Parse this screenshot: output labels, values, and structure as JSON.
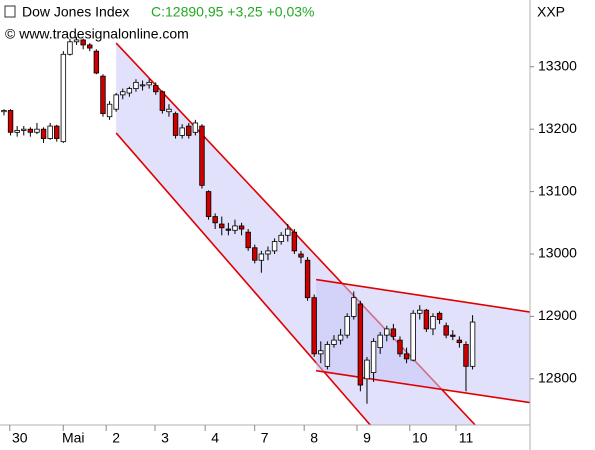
{
  "chart_data": {
    "type": "candlestick",
    "title": "Dow Jones Index",
    "quote": "C:12890,95 +3,25 +0,03%",
    "source": "© www.tradesignalonline.com",
    "symbol": "XXP",
    "up_color": "#ffffff",
    "down_color": "#cc0000",
    "channel_color": "#e00000",
    "channel_fill": "#c8c8f8",
    "x": [
      0,
      1,
      2,
      3,
      4,
      5,
      6,
      7,
      8,
      9,
      10,
      11,
      12,
      13,
      14,
      15,
      16,
      17,
      18,
      19,
      20,
      21,
      22,
      23,
      24,
      25,
      26,
      27,
      28,
      29,
      30,
      31,
      32,
      33,
      34,
      35,
      36,
      37,
      38,
      39,
      40,
      41,
      42,
      43,
      44,
      45,
      46,
      47,
      48,
      49,
      50,
      51,
      52,
      53,
      54,
      55,
      56,
      57,
      58,
      59,
      60,
      61,
      62,
      63,
      64,
      65,
      66,
      67,
      68,
      69,
      70,
      71
    ],
    "open": [
      13228,
      13230,
      13195,
      13198,
      13200,
      13195,
      13200,
      13185,
      13205,
      13180,
      13320,
      13340,
      13343,
      13335,
      13325,
      13285,
      13220,
      13232,
      13255,
      13258,
      13265,
      13270,
      13271,
      13270,
      13260,
      13228,
      13225,
      13190,
      13205,
      13195,
      13205,
      13100,
      13060,
      13048,
      13040,
      13038,
      13045,
      13035,
      13010,
      12990,
      13000,
      13005,
      13020,
      13030,
      13035,
      13000,
      12990,
      12930,
      12840,
      12820,
      12855,
      12862,
      12870,
      12900,
      12920,
      12800,
      12810,
      12850,
      12870,
      12880,
      12862,
      12840,
      12830,
      12905,
      12910,
      12880,
      12905,
      12885,
      12870,
      12862,
      12855,
      12820
    ],
    "high": [
      13232,
      13232,
      13205,
      13205,
      13203,
      13210,
      13203,
      13210,
      13207,
      13325,
      13345,
      13348,
      13345,
      13338,
      13328,
      13288,
      13245,
      13258,
      13265,
      13268,
      13280,
      13278,
      13280,
      13275,
      13262,
      13240,
      13228,
      13208,
      13210,
      13215,
      13208,
      13102,
      13065,
      13060,
      13050,
      13055,
      13050,
      13040,
      13015,
      13005,
      13012,
      13025,
      13035,
      13048,
      13040,
      13005,
      12995,
      12935,
      12860,
      12860,
      12870,
      12880,
      12905,
      12940,
      12925,
      12835,
      12865,
      12875,
      12885,
      12888,
      12868,
      12850,
      12910,
      12918,
      12912,
      12905,
      12908,
      12890,
      12878,
      12868,
      12860,
      12902
    ],
    "low": [
      13222,
      13190,
      13188,
      13190,
      13188,
      13192,
      13178,
      13183,
      13180,
      13178,
      13318,
      13335,
      13328,
      13325,
      13288,
      13220,
      13215,
      13228,
      13248,
      13252,
      13260,
      13262,
      13265,
      13255,
      13225,
      13220,
      13185,
      13185,
      13185,
      13190,
      13105,
      13055,
      13040,
      13030,
      13030,
      13032,
      13030,
      13005,
      12985,
      12970,
      12990,
      13000,
      13015,
      13020,
      13000,
      12985,
      12925,
      12835,
      12825,
      12815,
      12850,
      12855,
      12865,
      12895,
      12780,
      12760,
      12795,
      12840,
      12860,
      12862,
      12835,
      12825,
      12828,
      12895,
      12875,
      12870,
      12888,
      12865,
      12862,
      12850,
      12780,
      12815
    ],
    "close": [
      13230,
      13195,
      13198,
      13200,
      13195,
      13200,
      13185,
      13205,
      13185,
      13320,
      13340,
      13343,
      13335,
      13330,
      13290,
      13225,
      13240,
      13255,
      13260,
      13265,
      13275,
      13271,
      13275,
      13260,
      13230,
      13232,
      13190,
      13202,
      13190,
      13210,
      13110,
      13060,
      13050,
      13042,
      13038,
      13045,
      13040,
      13010,
      12990,
      13000,
      13005,
      13020,
      13030,
      13040,
      13005,
      12995,
      12930,
      12840,
      12845,
      12855,
      12862,
      12870,
      12900,
      12930,
      12790,
      12830,
      12860,
      12870,
      12880,
      12868,
      12840,
      12832,
      12905,
      12910,
      12880,
      12900,
      12895,
      12870,
      12868,
      12858,
      12820,
      12890.95
    ],
    "channels": [
      {
        "upper": {
          "x": [
            17,
            71.4
          ],
          "y": [
            13338,
            12726
          ]
        },
        "lower": {
          "x": [
            17,
            55.5
          ],
          "y": [
            13194,
            12726
          ]
        }
      },
      {
        "upper": {
          "x": [
            47.3,
            79.7
          ],
          "y": [
            12959,
            12907
          ]
        },
        "lower": {
          "x": [
            47.3,
            79.7
          ],
          "y": [
            12813,
            12762
          ]
        }
      }
    ],
    "xlim": [
      -0.6,
      79.7
    ],
    "ylim": [
      12726,
      13407
    ],
    "yticks": [
      12800,
      12900,
      13000,
      13100,
      13200,
      13300
    ],
    "xticks": [
      {
        "value": 2.4,
        "label": "30"
      },
      {
        "value": 10.5,
        "label": "Mai"
      },
      {
        "value": 17,
        "label": "2"
      },
      {
        "value": 24.4,
        "label": "3"
      },
      {
        "value": 32,
        "label": "4"
      },
      {
        "value": 39.5,
        "label": "7"
      },
      {
        "value": 47,
        "label": "8"
      },
      {
        "value": 55,
        "label": "9"
      },
      {
        "value": 63,
        "label": "10"
      },
      {
        "value": 70,
        "label": "11"
      }
    ]
  }
}
